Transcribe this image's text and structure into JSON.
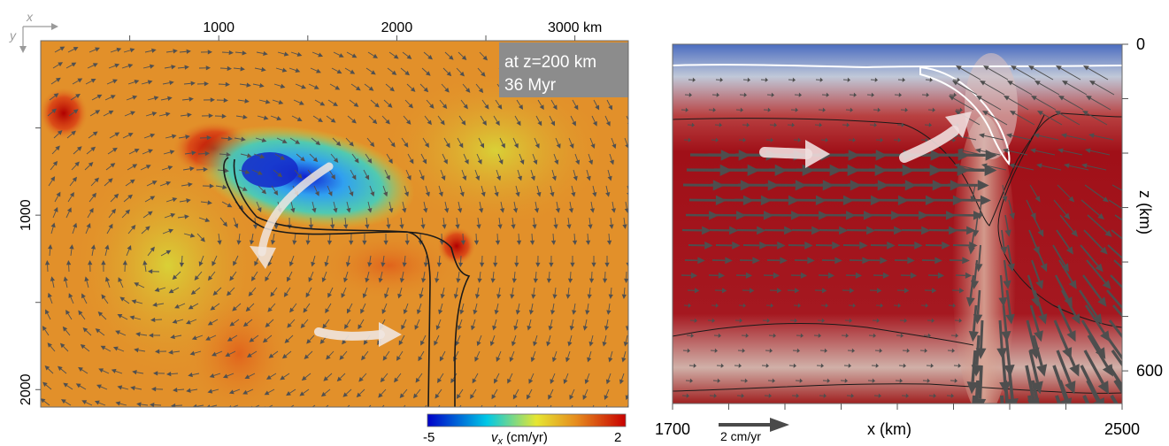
{
  "chart_data": [
    {
      "type": "heatmap",
      "title": "",
      "orientation_labels": {
        "x": "x",
        "y": "y"
      },
      "annotation": {
        "line1": "at z=200 km",
        "line2": "36 Myr"
      },
      "x_ticks": [
        {
          "v": 1000,
          "label": "1000"
        },
        {
          "v": 2000,
          "label": "2000"
        },
        {
          "v": 3000,
          "label": "3000 km"
        }
      ],
      "y_ticks": [
        {
          "v": 1000,
          "label": "1000"
        },
        {
          "v": 2000,
          "label": "2000"
        }
      ],
      "xlim": [
        0,
        3300
      ],
      "ylim": [
        0,
        2100
      ],
      "colorbar": {
        "min": -5,
        "max": 2,
        "min_label": "-5",
        "max_label": "2",
        "label": "v",
        "label_sub": "x",
        "label_unit": " (cm/yr)",
        "colors": [
          "#0000c8",
          "#00c8e6",
          "#e6e632",
          "#e68c1e",
          "#c80000"
        ]
      },
      "colors": {
        "background": "#e2902a",
        "slow": "#2040e0",
        "fast": "#c81010",
        "arrows": "#505050"
      }
    },
    {
      "type": "heatmap",
      "title": "",
      "xlabel": "x (km)",
      "ylabel": "z (km)",
      "x_ticks": [
        {
          "v": 1700,
          "label": "1700"
        },
        {
          "v": 2500,
          "label": "2500"
        }
      ],
      "y_ticks": [
        {
          "v": 0,
          "label": "0"
        },
        {
          "v": 600,
          "label": "600"
        }
      ],
      "xlim": [
        1700,
        2500
      ],
      "ylim": [
        0,
        660
      ],
      "scale_arrow": {
        "label": "2 cm/yr"
      },
      "colors": {
        "hot": "#a01018",
        "cold": "#5a78c0",
        "arrows": "#505050",
        "contour": "#ffffff"
      }
    }
  ]
}
